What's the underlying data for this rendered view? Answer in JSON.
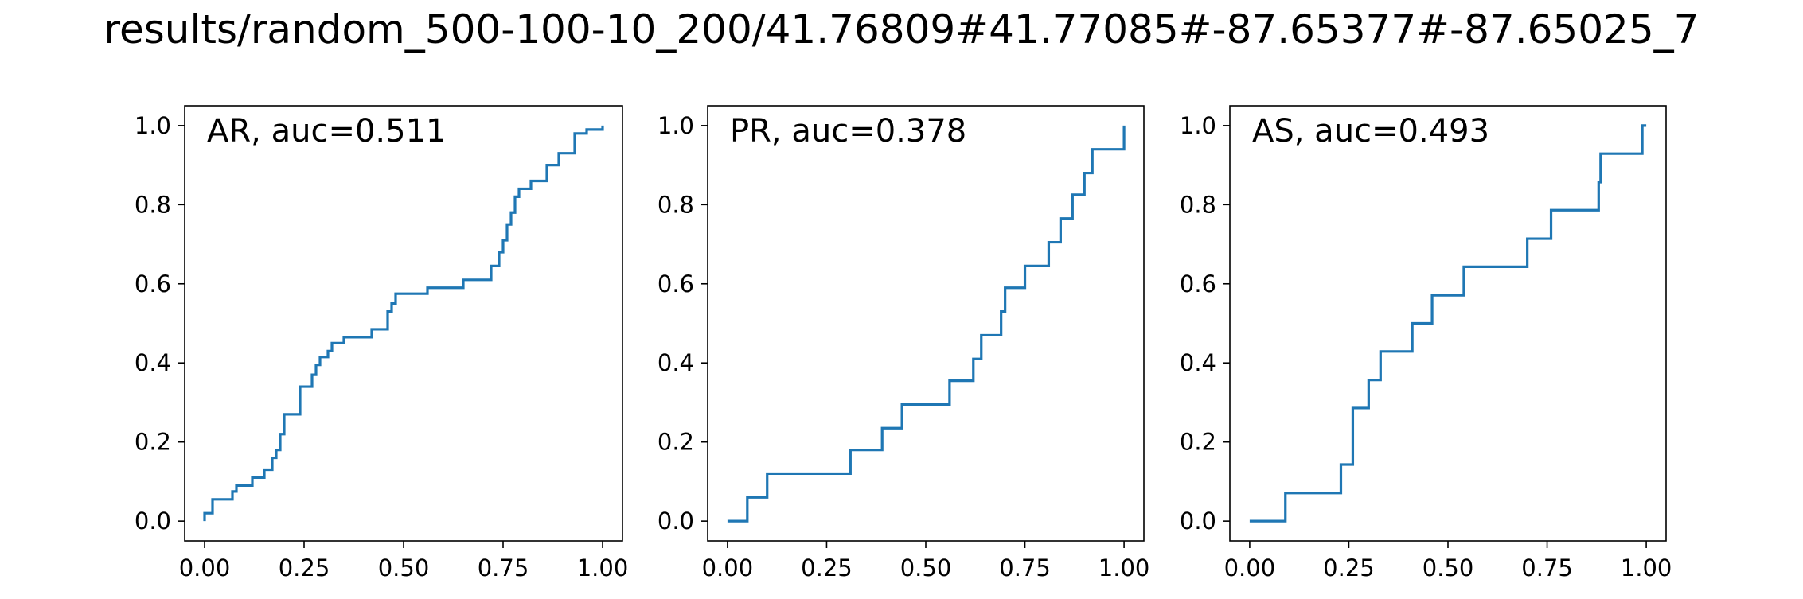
{
  "figure_title": "results/random_500-100-10_200/41.76809#41.77085#-87.65377#-87.65025_7",
  "colors": {
    "line": "#1f77b4",
    "axes": "#000000",
    "background": "#ffffff"
  },
  "chart_data": [
    {
      "type": "line",
      "step": true,
      "label": "AR, auc=0.511",
      "xlim": [
        -0.05,
        1.05
      ],
      "ylim": [
        -0.05,
        1.05
      ],
      "xticks": [
        "0.00",
        "0.25",
        "0.50",
        "0.75",
        "1.00"
      ],
      "yticks": [
        "0.0",
        "0.2",
        "0.4",
        "0.6",
        "0.8",
        "1.0"
      ],
      "grid": false,
      "x": [
        0.0,
        0.0,
        0.02,
        0.02,
        0.07,
        0.07,
        0.08,
        0.08,
        0.12,
        0.12,
        0.15,
        0.15,
        0.17,
        0.17,
        0.18,
        0.18,
        0.19,
        0.19,
        0.2,
        0.2,
        0.24,
        0.24,
        0.27,
        0.27,
        0.28,
        0.28,
        0.29,
        0.29,
        0.31,
        0.31,
        0.32,
        0.32,
        0.35,
        0.35,
        0.42,
        0.42,
        0.46,
        0.46,
        0.47,
        0.47,
        0.48,
        0.48,
        0.56,
        0.56,
        0.65,
        0.65,
        0.72,
        0.72,
        0.74,
        0.74,
        0.75,
        0.75,
        0.76,
        0.76,
        0.77,
        0.77,
        0.78,
        0.78,
        0.79,
        0.79,
        0.82,
        0.82,
        0.86,
        0.86,
        0.89,
        0.89,
        0.93,
        0.93,
        0.96,
        0.96,
        1.0,
        1.0
      ],
      "y": [
        0.0,
        0.02,
        0.02,
        0.055,
        0.055,
        0.075,
        0.075,
        0.09,
        0.09,
        0.11,
        0.11,
        0.13,
        0.13,
        0.16,
        0.16,
        0.18,
        0.18,
        0.22,
        0.22,
        0.27,
        0.27,
        0.34,
        0.34,
        0.37,
        0.37,
        0.395,
        0.395,
        0.415,
        0.415,
        0.43,
        0.43,
        0.45,
        0.45,
        0.465,
        0.465,
        0.485,
        0.485,
        0.53,
        0.53,
        0.55,
        0.55,
        0.575,
        0.575,
        0.59,
        0.59,
        0.61,
        0.61,
        0.645,
        0.645,
        0.68,
        0.68,
        0.71,
        0.71,
        0.75,
        0.75,
        0.78,
        0.78,
        0.82,
        0.82,
        0.84,
        0.84,
        0.86,
        0.86,
        0.9,
        0.9,
        0.93,
        0.93,
        0.98,
        0.98,
        0.99,
        0.99,
        1.0
      ]
    },
    {
      "type": "line",
      "step": true,
      "label": "PR, auc=0.378",
      "xlim": [
        -0.05,
        1.05
      ],
      "ylim": [
        -0.05,
        1.05
      ],
      "xticks": [
        "0.00",
        "0.25",
        "0.50",
        "0.75",
        "1.00"
      ],
      "yticks": [
        "0.0",
        "0.2",
        "0.4",
        "0.6",
        "0.8",
        "1.0"
      ],
      "grid": false,
      "x": [
        0.0,
        0.05,
        0.05,
        0.1,
        0.1,
        0.31,
        0.31,
        0.39,
        0.39,
        0.44,
        0.44,
        0.56,
        0.56,
        0.62,
        0.62,
        0.64,
        0.64,
        0.69,
        0.69,
        0.7,
        0.7,
        0.75,
        0.75,
        0.81,
        0.81,
        0.84,
        0.84,
        0.87,
        0.87,
        0.9,
        0.9,
        0.92,
        0.92,
        1.0,
        1.0
      ],
      "y": [
        0.0,
        0.0,
        0.06,
        0.06,
        0.12,
        0.12,
        0.18,
        0.18,
        0.235,
        0.235,
        0.295,
        0.295,
        0.355,
        0.355,
        0.41,
        0.41,
        0.47,
        0.47,
        0.53,
        0.53,
        0.59,
        0.59,
        0.645,
        0.645,
        0.705,
        0.705,
        0.765,
        0.765,
        0.825,
        0.825,
        0.88,
        0.88,
        0.94,
        0.94,
        1.0
      ]
    },
    {
      "type": "line",
      "step": true,
      "label": "AS, auc=0.493",
      "xlim": [
        -0.05,
        1.05
      ],
      "ylim": [
        -0.05,
        1.05
      ],
      "xticks": [
        "0.00",
        "0.25",
        "0.50",
        "0.75",
        "1.00"
      ],
      "yticks": [
        "0.0",
        "0.2",
        "0.4",
        "0.6",
        "0.8",
        "1.0"
      ],
      "grid": false,
      "x": [
        0.0,
        0.09,
        0.09,
        0.23,
        0.23,
        0.26,
        0.26,
        0.3,
        0.3,
        0.33,
        0.33,
        0.41,
        0.41,
        0.46,
        0.46,
        0.54,
        0.54,
        0.7,
        0.7,
        0.76,
        0.76,
        0.88,
        0.88,
        0.885,
        0.885,
        0.99,
        0.99,
        1.0
      ],
      "y": [
        0.0,
        0.0,
        0.071,
        0.071,
        0.143,
        0.143,
        0.286,
        0.286,
        0.357,
        0.357,
        0.429,
        0.429,
        0.5,
        0.5,
        0.571,
        0.571,
        0.643,
        0.643,
        0.714,
        0.714,
        0.786,
        0.786,
        0.857,
        0.857,
        0.929,
        0.929,
        1.0,
        1.0
      ]
    }
  ]
}
